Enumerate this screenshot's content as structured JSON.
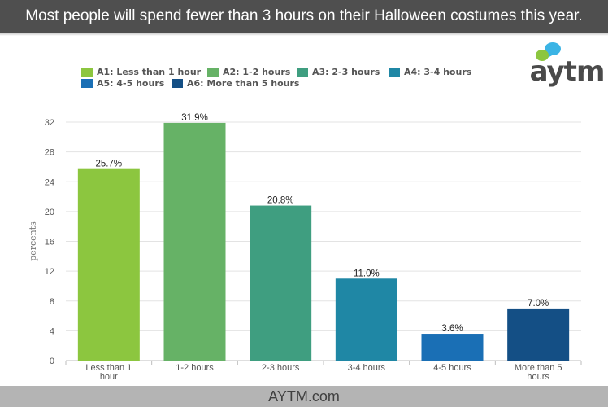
{
  "header": {
    "title": "Most people will spend fewer than 3 hours on their Halloween costumes this year."
  },
  "footer": {
    "text": "AYTM.com"
  },
  "logo": {
    "text": "aytm",
    "bubble_colors": [
      "#3bb4e5",
      "#8cc63f"
    ]
  },
  "legend": {
    "items": [
      {
        "label": "A1: Less than 1 hour",
        "color": "#8cc63f"
      },
      {
        "label": "A2: 1-2 hours",
        "color": "#66b266"
      },
      {
        "label": "A3: 2-3 hours",
        "color": "#3f9e80"
      },
      {
        "label": "A4: 3-4 hours",
        "color": "#1f87a5"
      },
      {
        "label": "A5: 4-5 hours",
        "color": "#1a6fb5"
      },
      {
        "label": "A6: More than 5 hours",
        "color": "#144f85"
      }
    ]
  },
  "chart_data": {
    "type": "bar",
    "categories": [
      [
        "Less than 1",
        "hour"
      ],
      [
        "1-2 hours"
      ],
      [
        "2-3 hours"
      ],
      [
        "3-4 hours"
      ],
      [
        "4-5 hours"
      ],
      [
        "More than 5",
        "hours"
      ]
    ],
    "values": [
      25.7,
      31.9,
      20.8,
      11.0,
      3.6,
      7.0
    ],
    "value_labels": [
      "25.7%",
      "31.9%",
      "20.8%",
      "11.0%",
      "3.6%",
      "7.0%"
    ],
    "colors": [
      "#8cc63f",
      "#66b266",
      "#3f9e80",
      "#1f87a5",
      "#1a6fb5",
      "#144f85"
    ],
    "ylabel": "percents",
    "yticks": [
      0,
      4,
      8,
      12,
      16,
      20,
      24,
      28,
      32
    ],
    "ylim": [
      0,
      32
    ],
    "grid": true
  }
}
